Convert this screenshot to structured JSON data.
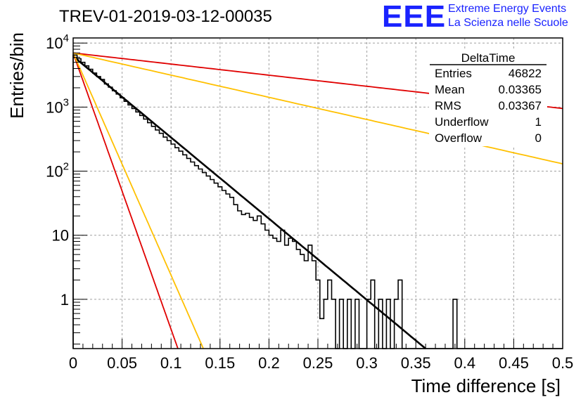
{
  "header": {
    "title": "TREV-01-2019-03-12-00035",
    "logo_text": "EEE",
    "logo_line1": "Extreme Energy Events",
    "logo_line2": "La Scienza nelle Scuole"
  },
  "stats_box": {
    "name": "DeltaTime",
    "rows": [
      {
        "label": "Entries",
        "value": "46822"
      },
      {
        "label": "Mean",
        "value": "0.03365"
      },
      {
        "label": "RMS",
        "value": "0.03367"
      },
      {
        "label": "Underflow",
        "value": "1"
      },
      {
        "label": "Overflow",
        "value": "0"
      }
    ]
  },
  "colors": {
    "histogram": "#000000",
    "fit": "#000000",
    "red_curve": "#e00000",
    "orange_curve": "#ffc000",
    "grid": "#a0a0a0"
  },
  "chart_data": {
    "type": "histogram",
    "title": "TREV-01-2019-03-12-00035",
    "xlabel": "Time difference [s]",
    "ylabel": "Entries/bin",
    "xlim": [
      0,
      0.5
    ],
    "ylim": [
      0.17,
      12000
    ],
    "yscale": "log",
    "grid": true,
    "x_ticks": [
      "0",
      "0.05",
      "0.1",
      "0.15",
      "0.2",
      "0.25",
      "0.3",
      "0.35",
      "0.4",
      "0.45",
      "0.5"
    ],
    "y_ticks": [
      {
        "value": 1,
        "label": "1"
      },
      {
        "value": 10,
        "label": "10"
      },
      {
        "value": 100,
        "label": "10^2"
      },
      {
        "value": 1000,
        "label": "10^3"
      },
      {
        "value": 10000,
        "label": "10^4"
      }
    ],
    "bin_width": 0.004,
    "histogram_counts": [
      6500,
      5700,
      5000,
      4400,
      3900,
      3400,
      3000,
      2700,
      2300,
      2050,
      1800,
      1600,
      1400,
      1230,
      1080,
      950,
      840,
      740,
      650,
      570,
      500,
      440,
      390,
      340,
      300,
      265,
      232,
      205,
      180,
      158,
      139,
      122,
      108,
      95,
      84,
      74,
      65,
      57,
      50,
      44,
      39,
      30,
      24,
      21,
      22,
      19,
      17,
      20,
      15,
      12,
      10,
      9,
      8,
      12,
      7,
      9,
      8,
      6,
      5,
      4,
      7,
      4,
      2,
      0.5,
      1,
      2,
      1,
      0,
      1,
      0,
      1,
      0,
      1,
      0,
      0,
      1,
      2,
      0,
      1,
      0,
      1,
      0,
      1,
      2,
      0,
      0,
      0,
      0,
      0,
      0,
      0,
      0,
      0,
      0,
      0,
      0,
      0,
      1,
      0,
      0,
      0,
      0,
      0,
      0,
      0,
      0,
      0,
      0,
      0,
      0,
      0,
      0,
      0,
      0,
      0,
      0,
      0,
      0,
      0,
      0,
      0,
      0,
      0,
      0,
      0
    ],
    "series": [
      {
        "type": "exponential",
        "color": "#000000",
        "x_start": 0,
        "x_end": 0.36,
        "y_at_start": 6200,
        "y_at_end": 0.17
      },
      {
        "type": "exponential",
        "color": "#e00000",
        "x_start": 0,
        "x_end": 0.5,
        "y_at_start": 7000,
        "y_at_end": 950
      },
      {
        "type": "exponential",
        "color": "#ffc000",
        "x_start": 0,
        "x_end": 0.5,
        "y_at_start": 7000,
        "y_at_end": 130
      },
      {
        "type": "exponential",
        "color": "#e00000",
        "x_start": 0,
        "x_end": 0.107,
        "y_at_start": 7000,
        "y_at_end": 0.17
      },
      {
        "type": "exponential",
        "color": "#ffc000",
        "x_start": 0,
        "x_end": 0.133,
        "y_at_start": 7000,
        "y_at_end": 0.17
      }
    ]
  }
}
